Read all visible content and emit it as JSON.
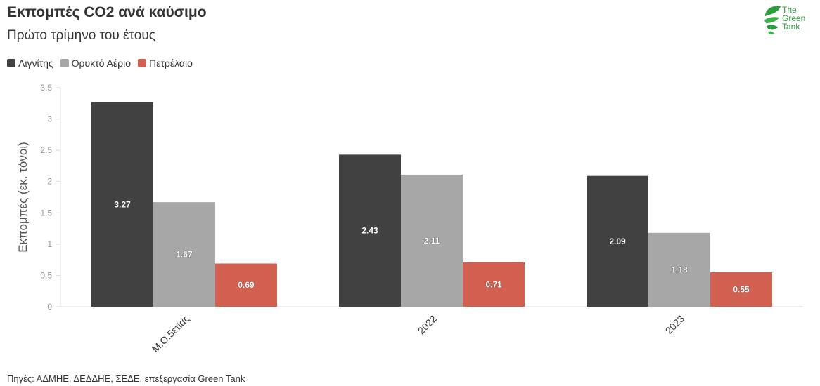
{
  "header": {
    "title": "Εκπομπές CO2 ανά καύσιμο",
    "subtitle": "Πρώτο τρίμηνο του έτους"
  },
  "logo": {
    "line1": "The",
    "line2": "Green",
    "line3": "Tank",
    "color": "#2e9b3f"
  },
  "footer": {
    "source": "Πηγές: ΑΔΜΗΕ, ΔΕΔΔΗΕ, ΣΕΔΕ, επεξεργασία Green Tank"
  },
  "chart_data": {
    "type": "bar",
    "title": "Εκπομπές CO2 ανά καύσιμο",
    "subtitle": "Πρώτο τρίμηνο του έτους",
    "xlabel": "",
    "ylabel": "Εκπομπές (εκ. τόνοι)",
    "ylim": [
      0,
      3.5
    ],
    "yticks": [
      0,
      0.5,
      1,
      1.5,
      2,
      2.5,
      3,
      3.5
    ],
    "ytick_labels": [
      "0",
      "0.5",
      "1",
      "1.5",
      "2",
      "2.5",
      "3",
      "3.5"
    ],
    "categories": [
      "Μ.Ο.5ετίας",
      "2022",
      "2023"
    ],
    "series": [
      {
        "name": "Λιγνίτης",
        "color": "#414141",
        "values": [
          3.27,
          2.43,
          2.09
        ],
        "labels": [
          "3.27",
          "2.43",
          "2.09"
        ]
      },
      {
        "name": "Ορυκτό Αέριο",
        "color": "#a7a7a7",
        "values": [
          1.67,
          2.11,
          1.18
        ],
        "labels": [
          "1.67",
          "2.11",
          "1.18"
        ]
      },
      {
        "name": "Πετρέλαιο",
        "color": "#d16050",
        "values": [
          0.69,
          0.71,
          0.55
        ],
        "labels": [
          "0.69",
          "0.71",
          "0.55"
        ]
      }
    ],
    "legend_position": "top-left",
    "grid": false,
    "data_labels": true
  }
}
